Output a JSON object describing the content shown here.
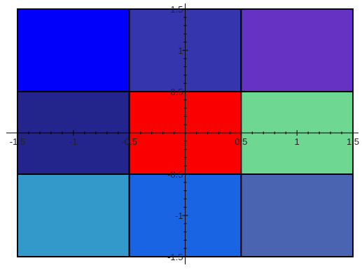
{
  "chart_data": {
    "type": "heatmap",
    "xlim": [
      -1.5,
      1.5
    ],
    "ylim": [
      -1.5,
      1.5
    ],
    "x_ticks": [
      {
        "value": -1.5,
        "label": "-1.5"
      },
      {
        "value": -1.0,
        "label": "-1"
      },
      {
        "value": -0.5,
        "label": "-0.5"
      },
      {
        "value": 0.5,
        "label": "0.5"
      },
      {
        "value": 1.0,
        "label": "1"
      },
      {
        "value": 1.5,
        "label": "1.5"
      }
    ],
    "y_ticks": [
      {
        "value": 1.5,
        "label": "1.5"
      },
      {
        "value": 1.0,
        "label": "1"
      },
      {
        "value": 0.5,
        "label": "0.5"
      },
      {
        "value": -0.5,
        "label": "-0.5"
      },
      {
        "value": -1.0,
        "label": "-1"
      },
      {
        "value": -1.5,
        "label": "-1.5"
      }
    ],
    "grid": false,
    "cells": [
      {
        "x0": -1.5,
        "x1": -0.5,
        "y0": 0.5,
        "y1": 1.5,
        "color": "#0000fb"
      },
      {
        "x0": -0.5,
        "x1": 0.5,
        "y0": 0.5,
        "y1": 1.5,
        "color": "#3535ad"
      },
      {
        "x0": 0.5,
        "x1": 1.5,
        "y0": 0.5,
        "y1": 1.5,
        "color": "#6532c4"
      },
      {
        "x0": -1.5,
        "x1": -0.5,
        "y0": -0.5,
        "y1": 0.5,
        "color": "#24248d"
      },
      {
        "x0": -0.5,
        "x1": 0.5,
        "y0": -0.5,
        "y1": 0.5,
        "color": "#fb0000"
      },
      {
        "x0": 0.5,
        "x1": 1.5,
        "y0": -0.5,
        "y1": 0.5,
        "color": "#6ed892"
      },
      {
        "x0": -1.5,
        "x1": -0.5,
        "y0": -1.5,
        "y1": -0.5,
        "color": "#3399cb"
      },
      {
        "x0": -0.5,
        "x1": 0.5,
        "y0": -1.5,
        "y1": -0.5,
        "color": "#1964e2"
      },
      {
        "x0": 0.5,
        "x1": 1.5,
        "y0": -1.5,
        "y1": -0.5,
        "color": "#4a64b1"
      }
    ]
  }
}
